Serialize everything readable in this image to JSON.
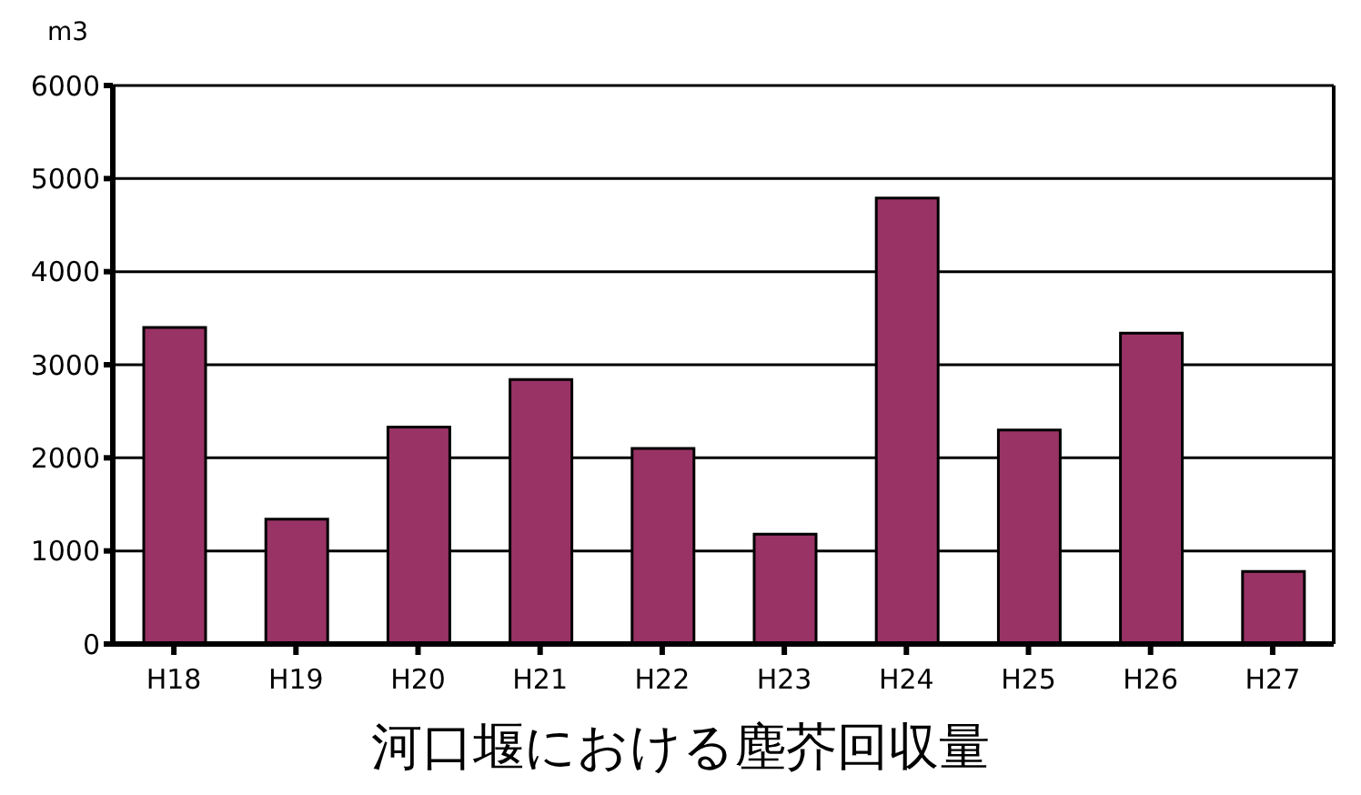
{
  "chart_data": {
    "type": "bar",
    "title": "河口堰における塵芥回収量",
    "ylabel": "m3",
    "categories": [
      "H18",
      "H19",
      "H20",
      "H21",
      "H22",
      "H23",
      "H24",
      "H25",
      "H26",
      "H27"
    ],
    "values": [
      3400,
      1340,
      2330,
      2840,
      2100,
      1180,
      4790,
      2300,
      3340,
      780
    ],
    "color": "#993366",
    "ylim": [
      0,
      6000
    ],
    "yticks": [
      0,
      1000,
      2000,
      3000,
      4000,
      5000,
      6000
    ],
    "grid": "y"
  }
}
